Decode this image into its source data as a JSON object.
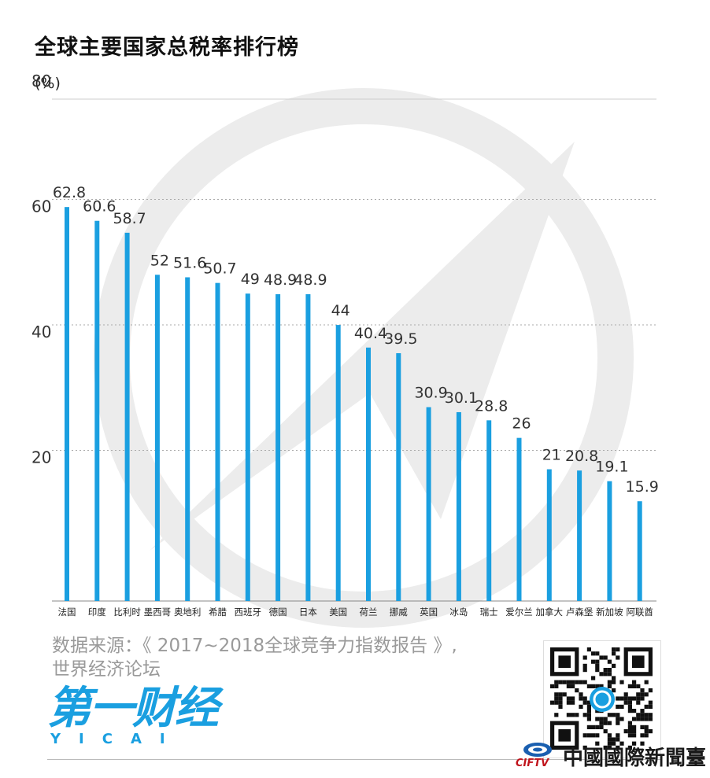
{
  "title": "全球主要国家总税率排行榜",
  "unit": "(%)",
  "source_line1": "数据来源：《 2017~2018全球竞争力指数报告 》,",
  "source_line2": "世界经济论坛",
  "logo_cn": "第一财经",
  "logo_en": "YICAI",
  "brand_en": "CIFTV",
  "brand_cn": "中國國際新聞臺",
  "colors": {
    "bar": "#1a9fe0",
    "grid": "#aaaaaa",
    "watermark": "#ececec"
  },
  "chart_data": {
    "type": "bar",
    "title": "全球主要国家总税率排行榜",
    "ylabel": "(%)",
    "ylim": [
      0,
      80
    ],
    "yticks": [
      20,
      40,
      60,
      80
    ],
    "grid": true,
    "categories": [
      "法国",
      "印度",
      "比利时",
      "墨西哥",
      "奥地利",
      "希腊",
      "西班牙",
      "德国",
      "日本",
      "美国",
      "荷兰",
      "挪威",
      "英国",
      "冰岛",
      "瑞士",
      "爱尔兰",
      "加拿大",
      "卢森堡",
      "新加坡",
      "阿联酋"
    ],
    "values": [
      62.8,
      60.6,
      58.7,
      52,
      51.6,
      50.7,
      49,
      48.9,
      48.9,
      44,
      40.4,
      39.5,
      30.9,
      30.1,
      28.8,
      26,
      21,
      20.8,
      19.1,
      15.9
    ],
    "value_labels": [
      "62.8",
      "60.6",
      "58.7",
      "52",
      "51.6",
      "50.7",
      "49",
      "48.9",
      "48.9",
      "44",
      "40.4",
      "39.5",
      "30.9",
      "30.1",
      "28.8",
      "26",
      "21",
      "20.8",
      "19.1",
      "15.9"
    ]
  }
}
